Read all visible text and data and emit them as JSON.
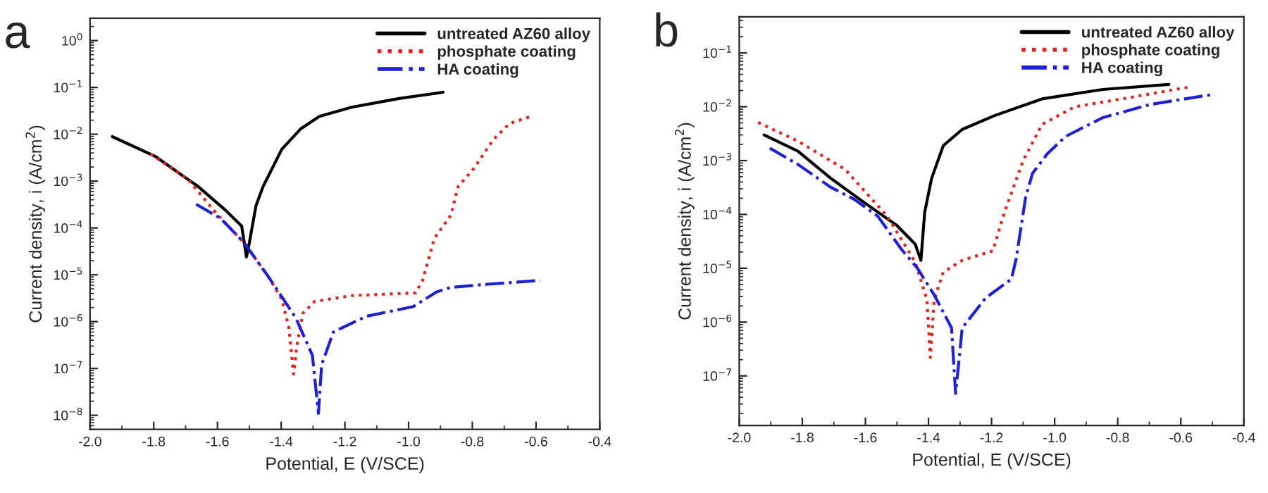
{
  "chart_data": [
    {
      "type": "line",
      "annotations": [
        "a"
      ],
      "xlabel": "Potential, E (V/SCE)",
      "ylabel": "Current density, i (A/cm$^{2}$)",
      "log": "y",
      "legend": "top right",
      "grid": false,
      "xlim": [
        -2.0,
        -0.4
      ],
      "xticks": [
        {
          "value": -2.0,
          "label": "-2.0"
        },
        {
          "value": -1.8,
          "label": "-1.8"
        },
        {
          "value": -1.6,
          "label": "-1.6"
        },
        {
          "value": -1.4,
          "label": "-1.4"
        },
        {
          "value": -1.2,
          "label": "-1.2"
        },
        {
          "value": -1.0,
          "label": "-1.0"
        },
        {
          "value": -0.8,
          "label": "-0.8"
        },
        {
          "value": -0.6,
          "label": "-0.6"
        },
        {
          "value": -0.4,
          "label": "-0.4"
        }
      ],
      "ylim": [
        5e-09,
        3
      ],
      "yticks": [
        {
          "value": 1e-08,
          "label": "10$^{−8}$"
        },
        {
          "value": 1e-07,
          "label": "10$^{−7}$"
        },
        {
          "value": 1e-06,
          "label": "10$^{−6}$"
        },
        {
          "value": 1e-05,
          "label": "10$^{−5}$"
        },
        {
          "value": 0.0001,
          "label": "10$^{−4}$"
        },
        {
          "value": 0.001,
          "label": "10$^{−3}$"
        },
        {
          "value": 0.01,
          "label": "10$^{−2}$"
        },
        {
          "value": 0.1,
          "label": "10$^{−1}$"
        },
        {
          "value": 1,
          "label": "10$^{0}$"
        }
      ],
      "series": [
        {
          "name": "untreated AZ60 alloy",
          "color": "#000000",
          "line_style": "solid",
          "x": [
            -1.93,
            -1.796,
            -1.66,
            -1.575,
            -1.524,
            -1.509,
            -1.5,
            -1.479,
            -1.457,
            -1.398,
            -1.339,
            -1.28,
            -1.177,
            -1.03,
            -0.892
          ],
          "values": [
            0.0089,
            0.0034,
            0.00076,
            0.00024,
            0.00011,
            2.4e-05,
            4.8e-05,
            0.0003,
            0.00076,
            0.0048,
            0.013,
            0.024,
            0.038,
            0.058,
            0.079
          ]
        },
        {
          "name": "phosphate coating",
          "color": "#e8211f",
          "line_style": "dotted",
          "x": [
            -1.81,
            -1.693,
            -1.605,
            -1.516,
            -1.442,
            -1.398,
            -1.376,
            -1.361,
            -1.351,
            -1.332,
            -1.295,
            -1.177,
            -0.978,
            -0.956,
            -0.919,
            -0.867,
            -0.845,
            -0.794,
            -0.735,
            -0.683,
            -0.617
          ],
          "values": [
            0.0038,
            0.0011,
            0.00021,
            4.8e-05,
            9.5e-06,
            3e-06,
            7.6e-07,
            7.6e-08,
            3e-07,
            1.5e-06,
            2.7e-06,
            3.6e-06,
            4.1e-06,
            7.6e-06,
            6e-05,
            0.00019,
            0.00076,
            0.0019,
            0.0076,
            0.017,
            0.024
          ]
        },
        {
          "name": "HA coating",
          "color": "#1f1fd8",
          "line_style": "dashdot",
          "x": [
            -1.667,
            -1.59,
            -1.516,
            -1.442,
            -1.354,
            -1.302,
            -1.283,
            -1.273,
            -1.236,
            -1.133,
            -0.985,
            -0.912,
            -0.867,
            -0.749,
            -0.587
          ],
          "values": [
            0.00032,
            0.00016,
            4.8e-05,
            9.5e-06,
            1.2e-06,
            1.9e-07,
            1.1e-08,
            1.2e-07,
            6e-07,
            1.3e-06,
            2.1e-06,
            4.3e-06,
            5.4e-06,
            6.3e-06,
            7.6e-06
          ]
        }
      ]
    },
    {
      "type": "line",
      "annotations": [
        "b"
      ],
      "xlabel": "Potential, E (V/SCE)",
      "ylabel": "Current density, i (A/cm$^{2}$)",
      "log": "y",
      "legend": "top right",
      "grid": false,
      "xlim": [
        -2.0,
        -0.4
      ],
      "xticks": [
        {
          "value": -2.0,
          "label": "-2.0"
        },
        {
          "value": -1.8,
          "label": "-1.8"
        },
        {
          "value": -1.6,
          "label": "-1.6"
        },
        {
          "value": -1.4,
          "label": "-1.4"
        },
        {
          "value": -1.2,
          "label": "-1.2"
        },
        {
          "value": -1.0,
          "label": "-1.0"
        },
        {
          "value": -0.8,
          "label": "-0.8"
        },
        {
          "value": -0.6,
          "label": "-0.6"
        },
        {
          "value": -0.4,
          "label": "-0.4"
        }
      ],
      "ylim": [
        1.2e-08,
        0.47
      ],
      "yticks": [
        {
          "value": 1e-07,
          "label": "10$^{−7}$"
        },
        {
          "value": 1e-06,
          "label": "10$^{−6}$"
        },
        {
          "value": 1e-05,
          "label": "10$^{−5}$"
        },
        {
          "value": 0.0001,
          "label": "10$^{−4}$"
        },
        {
          "value": 0.001,
          "label": "10$^{−3}$"
        },
        {
          "value": 0.01,
          "label": "10$^{−2}$"
        },
        {
          "value": 0.1,
          "label": "10$^{−1}$"
        }
      ],
      "series": [
        {
          "name": "untreated AZ60 alloy",
          "color": "#000000",
          "line_style": "solid",
          "x": [
            -1.921,
            -1.814,
            -1.71,
            -1.606,
            -1.501,
            -1.442,
            -1.424,
            -1.412,
            -1.39,
            -1.353,
            -1.293,
            -1.189,
            -1.04,
            -0.847,
            -0.638
          ],
          "values": [
            0.003,
            0.0015,
            0.00047,
            0.00017,
            6.3e-05,
            2.8e-05,
            1.4e-05,
            0.00011,
            0.00047,
            0.0019,
            0.0038,
            0.0069,
            0.014,
            0.021,
            0.026
          ]
        },
        {
          "name": "phosphate coating",
          "color": "#e8211f",
          "line_style": "dotted",
          "x": [
            -1.94,
            -1.814,
            -1.665,
            -1.531,
            -1.442,
            -1.405,
            -1.394,
            -1.382,
            -1.353,
            -1.293,
            -1.196,
            -1.159,
            -1.1,
            -1.04,
            -0.936,
            -0.757,
            -0.579
          ],
          "values": [
            0.0051,
            0.0023,
            0.00069,
            9.3e-05,
            1.3e-05,
            2.6e-06,
            2.2e-07,
            2.6e-06,
            8.5e-06,
            1.4e-05,
            2.1e-05,
            0.00011,
            0.001,
            0.0047,
            0.01,
            0.015,
            0.023
          ]
        },
        {
          "name": "HA coating",
          "color": "#1f1fd8",
          "line_style": "dashdot",
          "x": [
            -1.903,
            -1.814,
            -1.71,
            -1.635,
            -1.561,
            -1.487,
            -1.435,
            -1.382,
            -1.327,
            -1.314,
            -1.293,
            -1.219,
            -1.137,
            -1.122,
            -1.092,
            -1.07,
            -1.025,
            -0.966,
            -0.847,
            -0.698,
            -0.497
          ],
          "values": [
            0.0017,
            0.00085,
            0.00032,
            0.00019,
            9.3e-05,
            2.3e-05,
            1e-05,
            3.2e-06,
            7.8e-07,
            4.7e-08,
            7.8e-07,
            2.8e-06,
            6.3e-06,
            1.5e-05,
            0.00021,
            0.00058,
            0.0013,
            0.0028,
            0.0063,
            0.011,
            0.017
          ]
        }
      ]
    }
  ]
}
